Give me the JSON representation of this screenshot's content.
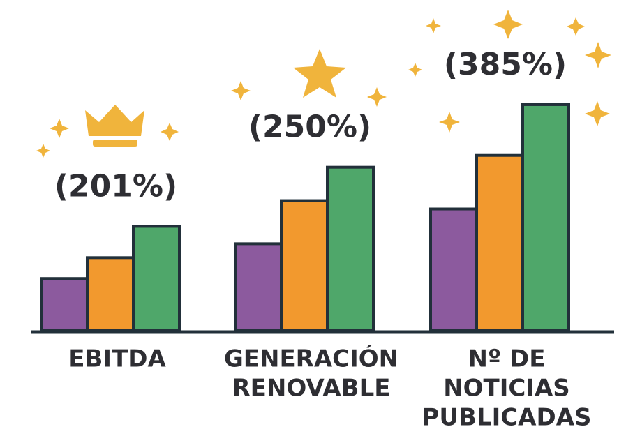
{
  "chart_data": {
    "type": "bar",
    "categories": [
      [
        "EBITDA"
      ],
      [
        "GENERACIÓN",
        "RENOVABLE"
      ],
      [
        "Nº DE",
        "NOTICIAS",
        "PUBLICADAS"
      ]
    ],
    "annotations": [
      "(201%)",
      "(250%)",
      "(385%)"
    ],
    "series": [
      {
        "color": "#8c5a9e",
        "values": [
          75,
          125,
          175
        ]
      },
      {
        "color": "#f2992e",
        "values": [
          105,
          187,
          252
        ]
      },
      {
        "color": "#4fa76a",
        "values": [
          150,
          235,
          325
        ]
      }
    ],
    "ylim": [
      0,
      340
    ]
  }
}
